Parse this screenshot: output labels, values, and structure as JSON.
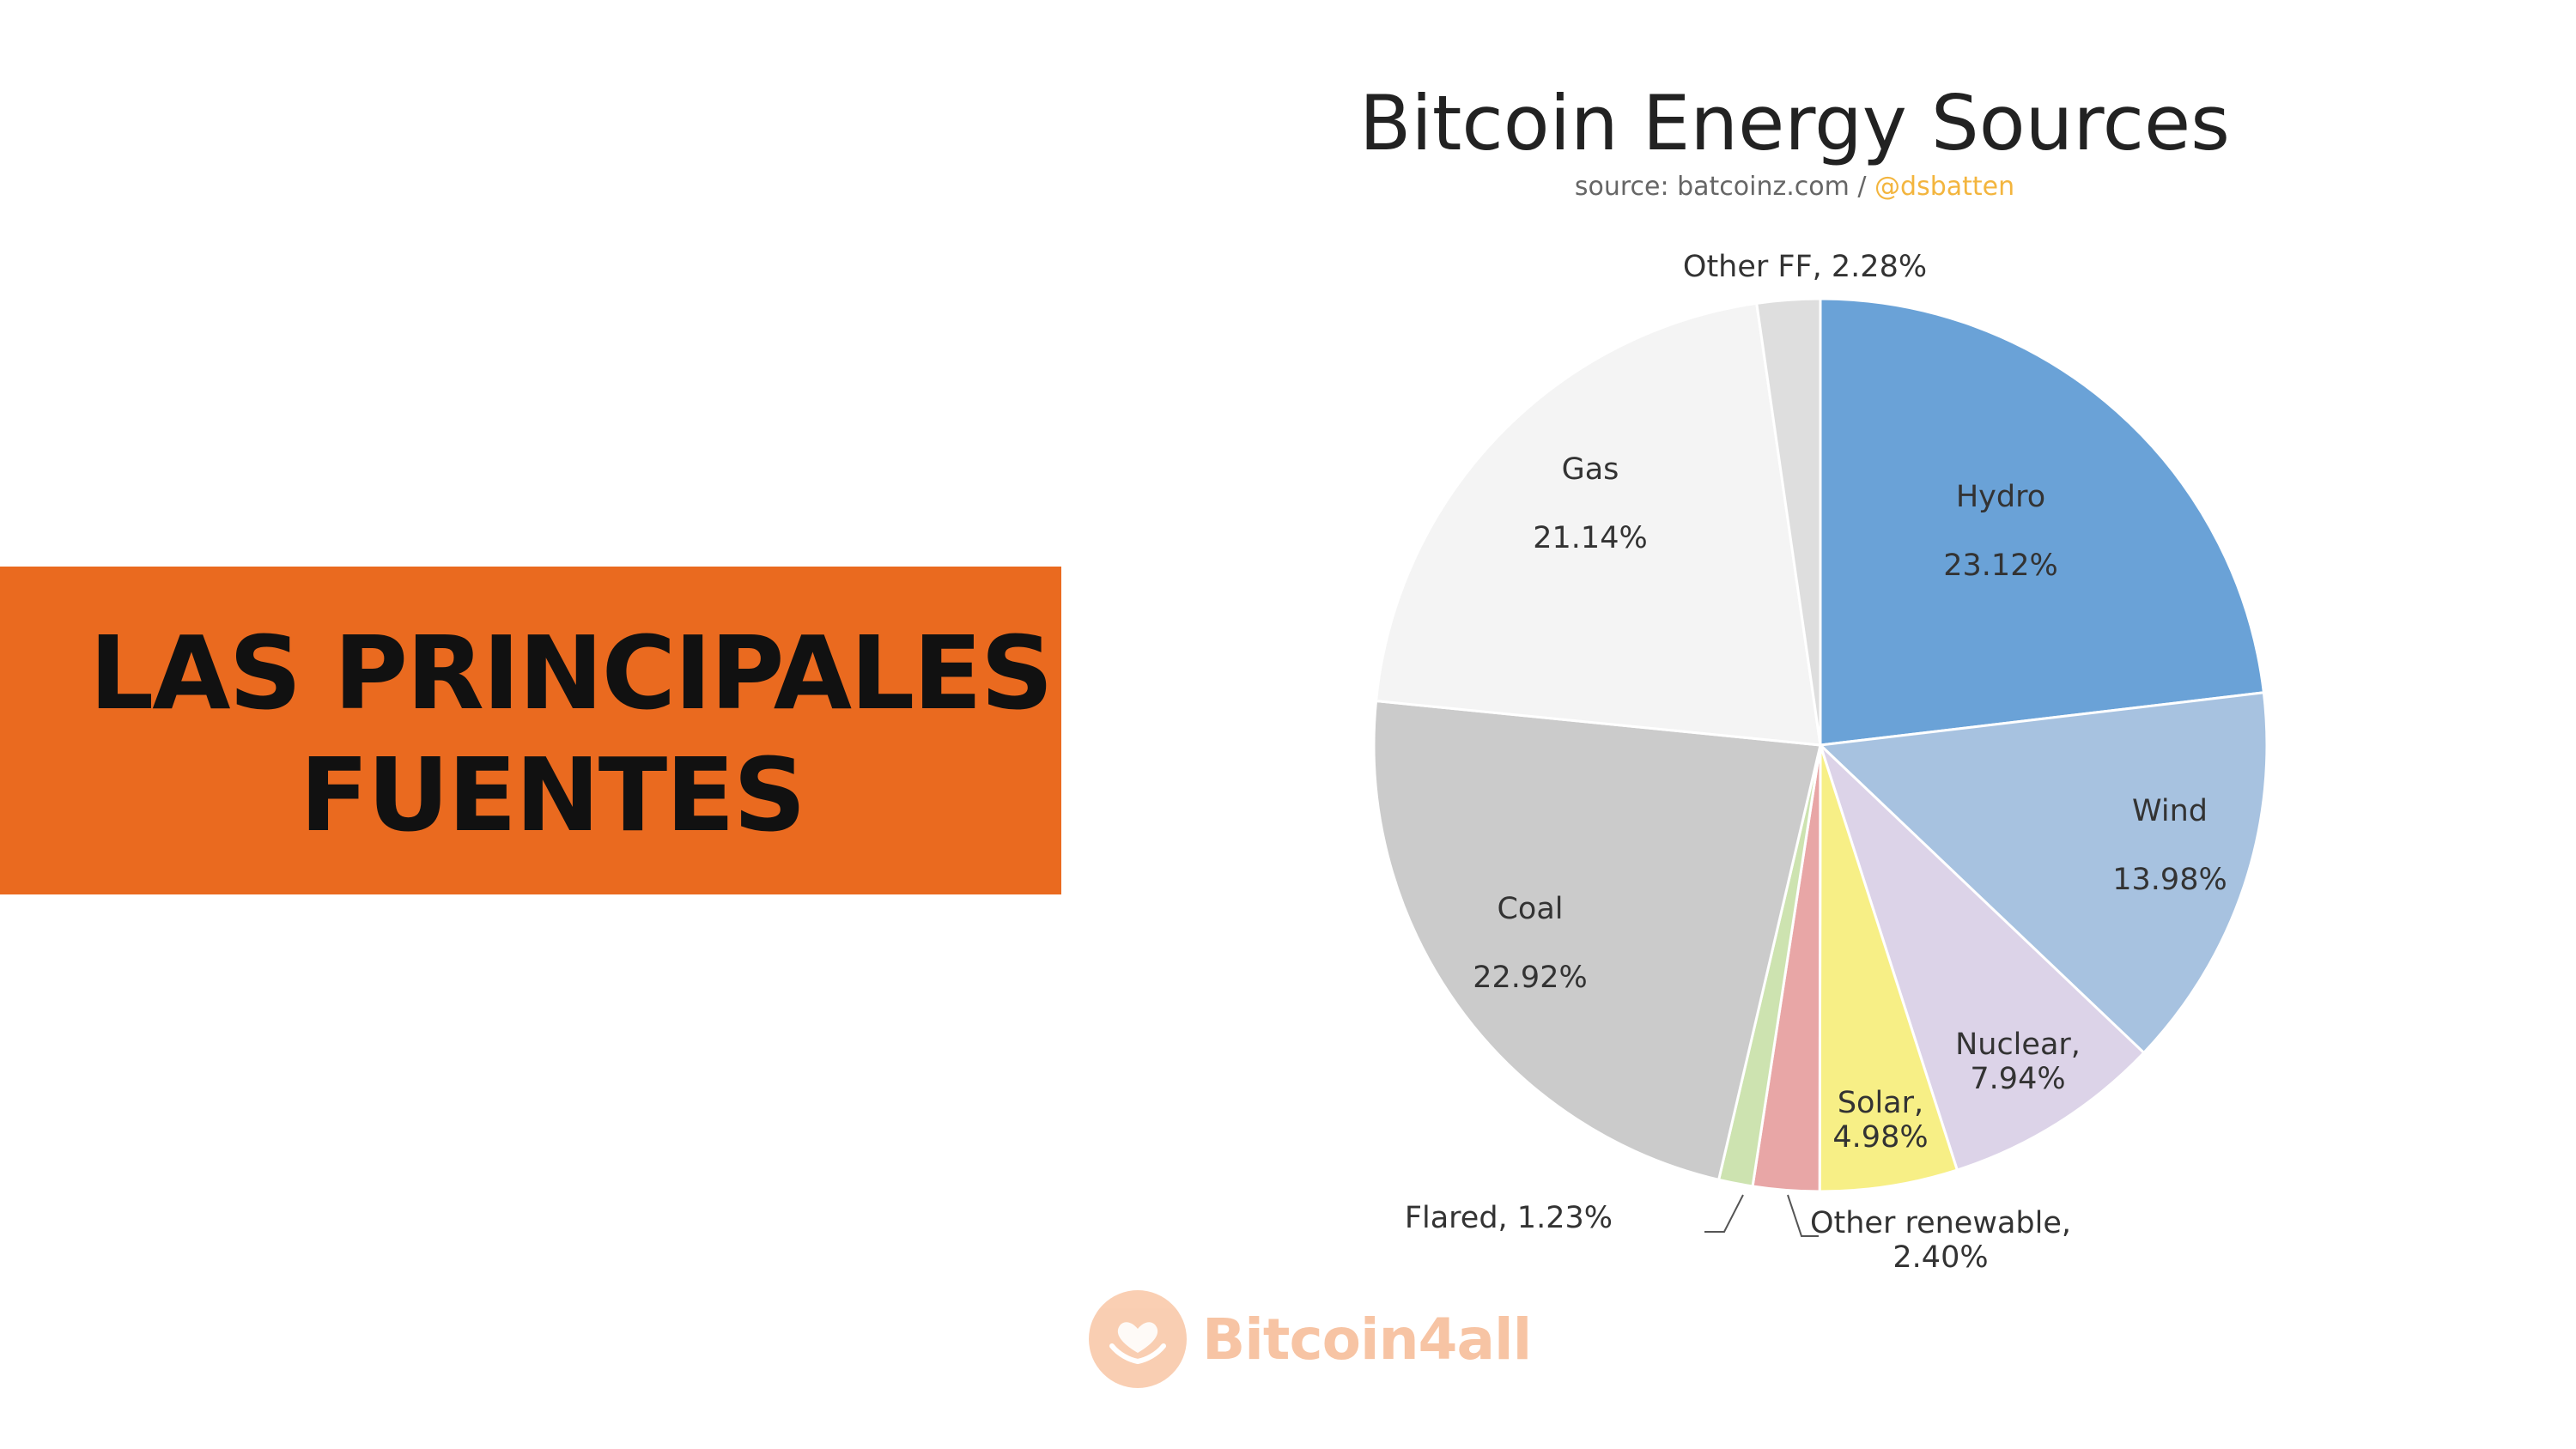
{
  "banner": {
    "line1": "LAS PRINCIPALES",
    "line2": "FUENTES"
  },
  "logo": {
    "icon": "hands-heart-icon",
    "text": "Bitcoin4all"
  },
  "chart_data": {
    "type": "pie",
    "title": "Bitcoin Energy Sources",
    "subtitle_prefix": "source: batcoinz.com / ",
    "subtitle_handle": "@dsbatten",
    "slices": [
      {
        "name": "Hydro",
        "value": 23.12,
        "value_label": "23.12%",
        "color": "#6aa2d7"
      },
      {
        "name": "Wind",
        "value": 13.98,
        "value_label": "13.98%",
        "color": "#a7c2e0"
      },
      {
        "name": "Nuclear,",
        "value": 7.94,
        "value_label": "7.94%",
        "color": "#dcd3e8"
      },
      {
        "name": "Solar,",
        "value": 4.98,
        "value_label": "4.98%",
        "color": "#f7ef86"
      },
      {
        "name": "Other renewable,",
        "value": 2.4,
        "value_label": "2.40%",
        "color": "#e8a6a6"
      },
      {
        "name": "Flared, 1.23%",
        "value": 1.23,
        "value_label": "",
        "color": "#cde3b0"
      },
      {
        "name": "Coal",
        "value": 22.92,
        "value_label": "22.92%",
        "color": "#cbcbcb"
      },
      {
        "name": "Gas",
        "value": 21.14,
        "value_label": "21.14%",
        "color": "#f4f4f4"
      },
      {
        "name": "Other FF, 2.28%",
        "value": 2.28,
        "value_label": "",
        "color": "#dedede"
      }
    ]
  }
}
